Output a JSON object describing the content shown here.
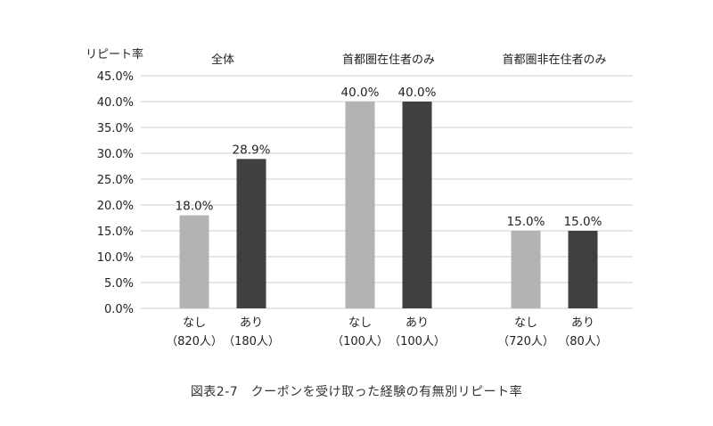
{
  "caption": "図表2-7　クーポンを受け取った経験の有無別リピート率",
  "chart_data": {
    "type": "bar",
    "ylabel": "リピート率",
    "ylim": [
      0,
      45
    ],
    "y_ticks": [
      "0.0%",
      "5.0%",
      "10.0%",
      "15.0%",
      "20.0%",
      "25.0%",
      "30.0%",
      "35.0%",
      "40.0%",
      "45.0%"
    ],
    "grid": true,
    "unit": "%",
    "colors": {
      "nashi": "#b3b3b3",
      "ari": "#404040",
      "grid": "#cccccc"
    },
    "groups": [
      {
        "title": "全体",
        "bars": [
          {
            "label": "なし",
            "n": "（820人）",
            "value": 18.0,
            "value_label": "18.0%"
          },
          {
            "label": "あり",
            "n": "（180人）",
            "value": 28.9,
            "value_label": "28.9%"
          }
        ]
      },
      {
        "title": "首都圏在住者のみ",
        "bars": [
          {
            "label": "なし",
            "n": "（100人）",
            "value": 40.0,
            "value_label": "40.0%"
          },
          {
            "label": "あり",
            "n": "（100人）",
            "value": 40.0,
            "value_label": "40.0%"
          }
        ]
      },
      {
        "title": "首都圏非在住者のみ",
        "bars": [
          {
            "label": "なし",
            "n": "（720人）",
            "value": 15.0,
            "value_label": "15.0%"
          },
          {
            "label": "あり",
            "n": "（80人）",
            "value": 15.0,
            "value_label": "15.0%"
          }
        ]
      }
    ]
  }
}
